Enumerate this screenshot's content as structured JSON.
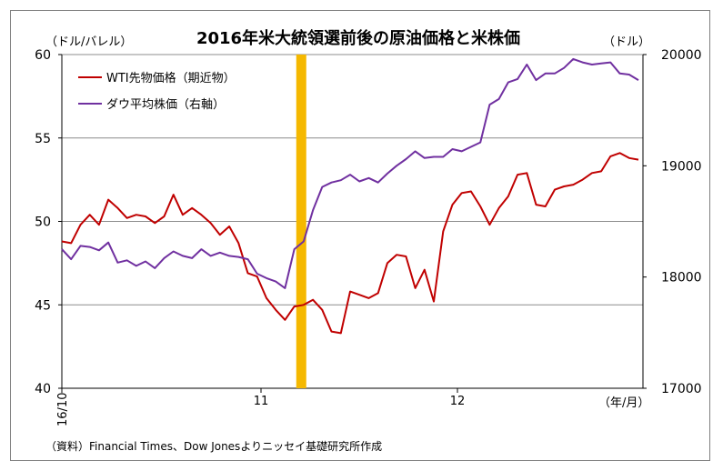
{
  "chart_data": {
    "type": "line",
    "title": "2016年米大統領選前後の原油価格と米株価",
    "left_unit": "（ドル/バレル）",
    "right_unit": "（ドル）",
    "x_axis_unit": "（年/月）",
    "source": "（資料）Financial Times、Dow Jonesよりニッセイ基礎研究所作成",
    "x_ticks": [
      "16/10",
      "11",
      "12"
    ],
    "left_ylim": [
      40,
      60
    ],
    "left_ticks": [
      "40",
      "45",
      "50",
      "55",
      "60"
    ],
    "right_ylim": [
      17000,
      20000
    ],
    "right_ticks": [
      "17000",
      "18000",
      "19000",
      "20000"
    ],
    "grid": "horizontal",
    "legend_position": "top-left",
    "election_marker": {
      "color": "#F5B800",
      "after_index": 26
    },
    "series": [
      {
        "name": "WTI先物価格（期近物）",
        "axis": "left",
        "color": "#C00000",
        "values": [
          48.8,
          48.7,
          49.8,
          50.4,
          49.8,
          51.3,
          50.8,
          50.2,
          50.4,
          50.3,
          49.9,
          50.3,
          51.6,
          50.4,
          50.8,
          50.4,
          49.9,
          49.2,
          49.7,
          48.7,
          46.9,
          46.7,
          45.4,
          44.7,
          44.1,
          44.9,
          45.0,
          45.3,
          44.7,
          43.4,
          43.3,
          45.8,
          45.6,
          45.4,
          45.7,
          47.5,
          48.0,
          47.9,
          46.0,
          47.1,
          45.2,
          49.4,
          51.0,
          51.7,
          51.8,
          50.9,
          49.8,
          50.8,
          51.5,
          52.8,
          52.9,
          51.0,
          50.9,
          51.9,
          52.1,
          52.2,
          52.5,
          52.9,
          53.0,
          53.9,
          54.1,
          53.8,
          53.7
        ]
      },
      {
        "name": "ダウ平均株価（右軸）",
        "axis": "right",
        "color": "#7030A0",
        "values": [
          18250,
          18160,
          18280,
          18270,
          18240,
          18310,
          18130,
          18150,
          18100,
          18140,
          18080,
          18170,
          18230,
          18190,
          18170,
          18250,
          18190,
          18220,
          18190,
          18180,
          18160,
          18030,
          17990,
          17960,
          17900,
          18250,
          18320,
          18600,
          18810,
          18850,
          18870,
          18920,
          18860,
          18890,
          18850,
          18930,
          19000,
          19060,
          19130,
          19070,
          19080,
          19080,
          19150,
          19130,
          19170,
          19210,
          19550,
          19600,
          19750,
          19780,
          19910,
          19770,
          19830,
          19830,
          19880,
          19960,
          19930,
          19910,
          19920,
          19930,
          19830,
          19820,
          19770
        ]
      }
    ]
  }
}
